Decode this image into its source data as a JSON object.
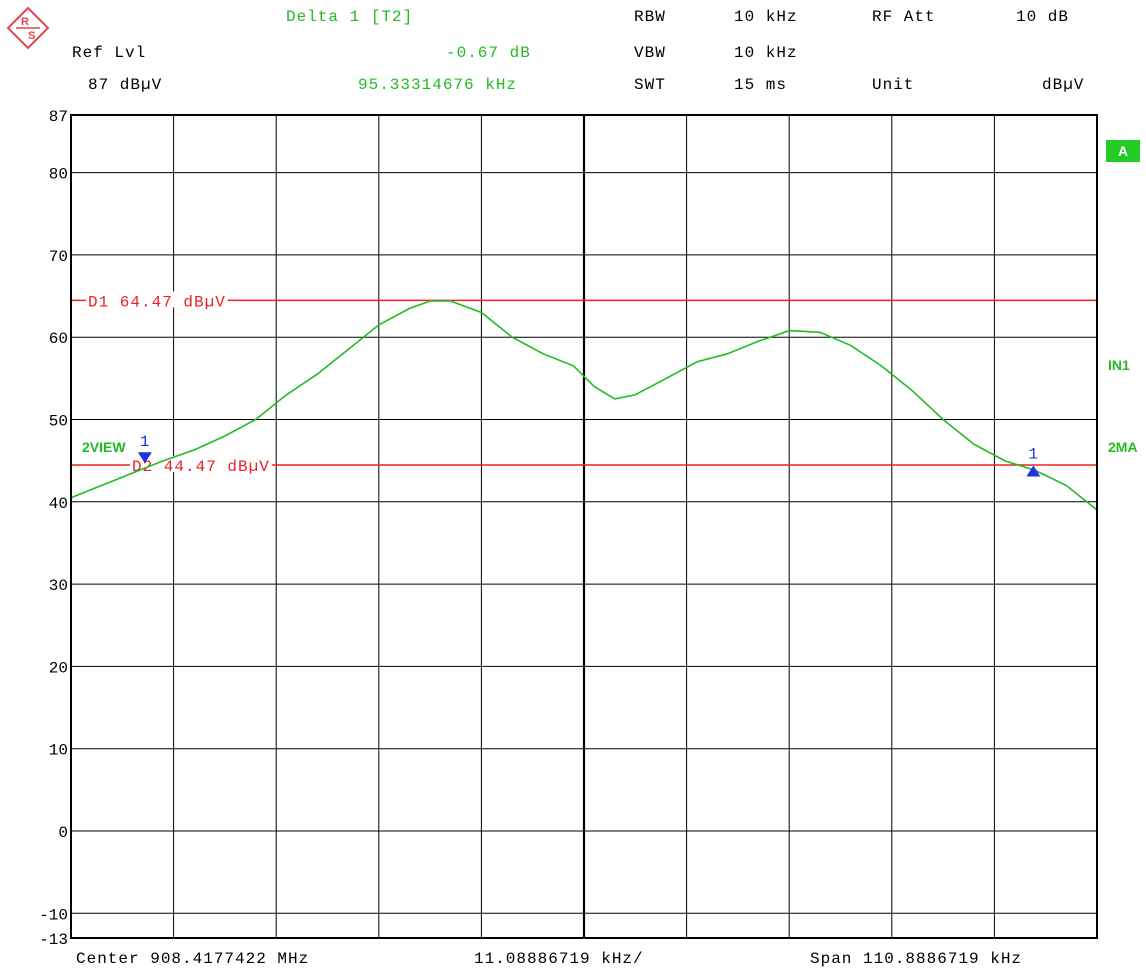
{
  "header": {
    "marker_label": "Delta 1 [T2]",
    "marker_level": "-0.67 dB",
    "marker_freq": "95.33314676 kHz",
    "ref_lvl_label": "Ref Lvl",
    "ref_lvl_value": "87 dBµV",
    "rbw_label": "RBW",
    "rbw_value": "10 kHz",
    "vbw_label": "VBW",
    "vbw_value": "10 kHz",
    "swt_label": "SWT",
    "swt_value": "15 ms",
    "rf_att_label": "RF Att",
    "rf_att_value": "10 dB",
    "unit_label": "Unit",
    "unit_value": "dBµV"
  },
  "footer": {
    "center": "Center 908.4177422 MHz",
    "per_div": "11.08886719 kHz/",
    "span": "Span 110.8886719 kHz"
  },
  "side_labels": {
    "trace_a": "A",
    "in1": "IN1",
    "ma2": "2MA",
    "view2": "2VIEW"
  },
  "colors": {
    "trace": "#22bb22",
    "display_line": "#ee2222",
    "marker": "#2233dd",
    "grid": "#000000"
  },
  "chart_data": {
    "type": "line",
    "ylim": [
      -13,
      87
    ],
    "yticks": [
      87,
      80,
      70,
      60,
      50,
      40,
      30,
      20,
      10,
      0,
      -10,
      -13
    ],
    "xlim": [
      0,
      10
    ],
    "x_divisions": 10,
    "grid": true,
    "display_lines": [
      {
        "name": "D1",
        "value": 64.47,
        "label": "D1 64.47 dBµV"
      },
      {
        "name": "D2",
        "value": 44.47,
        "label": "D2 44.47 dBµV"
      }
    ],
    "markers": [
      {
        "label": "1",
        "x": 0.72,
        "y": 45.3,
        "shape": "down-triangle"
      },
      {
        "label": "1",
        "x": 9.38,
        "y": 43.8,
        "shape": "up-triangle"
      }
    ],
    "series": [
      {
        "x": [
          0,
          0.3,
          0.6,
          0.9,
          1.2,
          1.5,
          1.8,
          2.1,
          2.4,
          2.7,
          3.0,
          3.3,
          3.5,
          3.7,
          4.0,
          4.3,
          4.6,
          4.9,
          5.1,
          5.3,
          5.5,
          5.8,
          6.1,
          6.4,
          6.7,
          7.0,
          7.3,
          7.6,
          7.9,
          8.2,
          8.5,
          8.8,
          9.1,
          9.4,
          9.7,
          10.0
        ],
        "values": [
          40.5,
          42.0,
          43.5,
          45.0,
          46.3,
          48.0,
          50.0,
          53.0,
          55.5,
          58.5,
          61.5,
          63.5,
          64.4,
          64.4,
          63.0,
          60.0,
          58.0,
          56.5,
          54.0,
          52.5,
          53.0,
          55.0,
          57.0,
          58.0,
          59.5,
          60.8,
          60.6,
          59.0,
          56.5,
          53.5,
          50.0,
          47.0,
          45.0,
          43.8,
          42.0,
          39.0
        ]
      }
    ]
  }
}
